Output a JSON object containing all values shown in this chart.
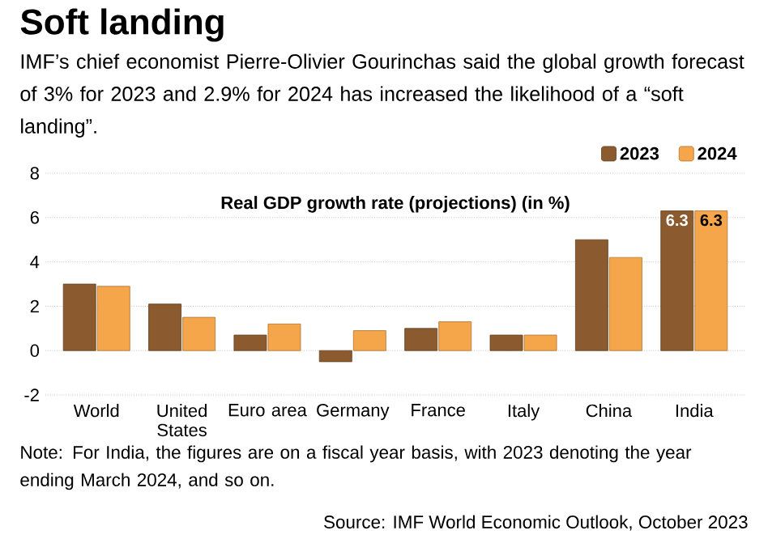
{
  "chart_data": {
    "type": "bar",
    "title": "Soft landing",
    "subtitle": "IMF’s chief economist Pierre-Olivier Gourinchas said the global growth forecast of 3% for 2023 and 2.9% for 2024 has increased the likelihood of a “soft landing”.",
    "categories": [
      "World",
      "United States",
      "Euro area",
      "Germany",
      "France",
      "Italy",
      "China",
      "India"
    ],
    "series": [
      {
        "name": "2023",
        "color": "#8b5a2e",
        "values": [
          3.0,
          2.1,
          0.7,
          -0.5,
          1.0,
          0.7,
          5.0,
          6.3
        ],
        "value_labels": [
          null,
          null,
          null,
          null,
          null,
          null,
          null,
          "6.3"
        ]
      },
      {
        "name": "2024",
        "color": "#f5a54a",
        "values": [
          2.9,
          1.5,
          1.2,
          0.9,
          1.3,
          0.7,
          4.2,
          6.3
        ],
        "value_labels": [
          null,
          null,
          null,
          null,
          null,
          null,
          null,
          "6.3"
        ]
      }
    ],
    "ylim": [
      -2,
      8
    ],
    "yticks": [
      -2,
      0,
      2,
      4,
      6,
      8
    ],
    "grid": "y",
    "legend": "top right",
    "annotations": [
      "Real GDP growth rate (projections) (in %)",
      "Note: For India, the figures are on a fiscal year basis, with 2023 denoting the year ending March 2024, and so on.",
      "Source: IMF World Economic Outlook, October 2023"
    ]
  }
}
